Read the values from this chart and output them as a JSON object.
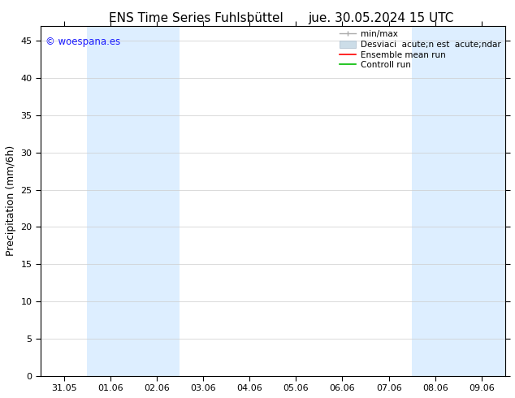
{
  "title_left": "ENS Time Series Fuhlsbüttel",
  "title_right": "jue. 30.05.2024 15 UTC",
  "ylabel": "Precipitation (mm/6h)",
  "watermark": "© woespana.es",
  "watermark_color": "#1a1aff",
  "xlim_left": -0.5,
  "xlim_right": 9.5,
  "ylim_bottom": 0,
  "ylim_top": 47,
  "yticks": [
    0,
    5,
    10,
    15,
    20,
    25,
    30,
    35,
    40,
    45
  ],
  "xtick_labels": [
    "31.05",
    "01.06",
    "02.06",
    "03.06",
    "04.06",
    "05.06",
    "06.06",
    "07.06",
    "08.06",
    "09.06"
  ],
  "xtick_positions": [
    0,
    1,
    2,
    3,
    4,
    5,
    6,
    7,
    8,
    9
  ],
  "shaded_bands": [
    {
      "x_start": 0.5,
      "x_end": 2.5
    },
    {
      "x_start": 7.5,
      "x_end": 9.5
    }
  ],
  "shaded_color": "#ddeeff",
  "background_color": "#ffffff",
  "plot_bg_color": "#ffffff",
  "legend_labels": [
    "min/max",
    "Desviaci  acute;n est  acute;ndar",
    "Ensemble mean run",
    "Controll run"
  ],
  "legend_colors_line": [
    "#aaaaaa",
    "#bbccdd",
    "#ff0000",
    "#00bb00"
  ],
  "grid_color": "#cccccc",
  "tick_fontsize": 8,
  "title_fontsize": 11,
  "ylabel_fontsize": 9
}
